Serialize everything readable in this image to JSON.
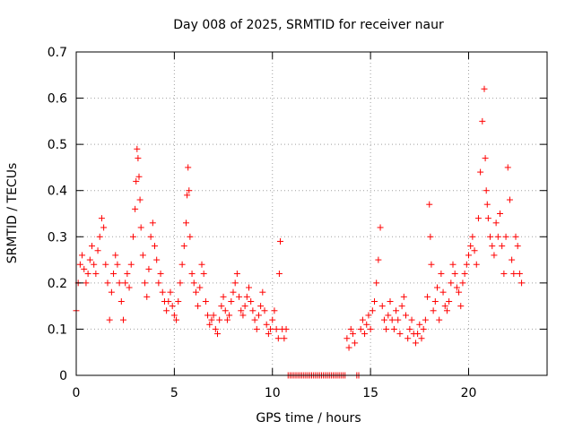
{
  "chart_data": {
    "type": "scatter",
    "title": "Day 008 of 2025, SRMTID for receiver naur",
    "xlabel": "GPS time / hours",
    "ylabel": "SRMTID / TECUs",
    "xlim": [
      0,
      24
    ],
    "ylim": [
      0,
      0.7
    ],
    "xticks": [
      0,
      5,
      10,
      15,
      20
    ],
    "xtick_labels": [
      "0",
      "5",
      "10",
      "15",
      "20"
    ],
    "yticks": [
      0,
      0.1,
      0.2,
      0.3,
      0.4,
      0.5,
      0.6,
      0.7
    ],
    "ytick_labels": [
      "0",
      "0.1",
      "0.2",
      "0.3",
      "0.4",
      "0.5",
      "0.6",
      "0.7"
    ],
    "grid": true,
    "marker": "+",
    "color": "#ff0000",
    "series": [
      {
        "name": "SRMTID",
        "x": [
          0.0,
          0.1,
          0.2,
          0.3,
          0.4,
          0.5,
          0.6,
          0.7,
          0.8,
          0.9,
          1.0,
          1.1,
          1.2,
          1.3,
          1.4,
          1.5,
          1.6,
          1.7,
          1.8,
          1.9,
          2.0,
          2.1,
          2.2,
          2.3,
          2.4,
          2.5,
          2.6,
          2.7,
          2.8,
          2.9,
          3.0,
          3.05,
          3.1,
          3.15,
          3.2,
          3.25,
          3.3,
          3.4,
          3.5,
          3.6,
          3.7,
          3.8,
          3.9,
          4.0,
          4.1,
          4.2,
          4.3,
          4.4,
          4.5,
          4.6,
          4.7,
          4.8,
          4.9,
          5.0,
          5.1,
          5.2,
          5.3,
          5.4,
          5.5,
          5.6,
          5.65,
          5.7,
          5.75,
          5.8,
          5.9,
          6.0,
          6.1,
          6.2,
          6.3,
          6.4,
          6.5,
          6.6,
          6.7,
          6.8,
          6.9,
          7.0,
          7.1,
          7.2,
          7.3,
          7.4,
          7.5,
          7.6,
          7.7,
          7.8,
          7.9,
          8.0,
          8.1,
          8.2,
          8.3,
          8.4,
          8.5,
          8.6,
          8.7,
          8.8,
          8.9,
          9.0,
          9.1,
          9.2,
          9.3,
          9.4,
          9.5,
          9.6,
          9.7,
          9.8,
          9.9,
          10.0,
          10.1,
          10.2,
          10.3,
          10.35,
          10.4,
          10.5,
          10.6,
          10.7,
          10.8,
          10.9,
          11.0,
          11.1,
          11.2,
          11.3,
          11.4,
          11.5,
          11.6,
          11.7,
          11.8,
          11.9,
          12.0,
          12.1,
          12.2,
          12.3,
          12.4,
          12.5,
          12.6,
          12.7,
          12.8,
          12.9,
          13.0,
          13.1,
          13.2,
          13.3,
          13.4,
          13.5,
          13.6,
          13.7,
          13.8,
          13.9,
          14.0,
          14.1,
          14.2,
          14.3,
          14.4,
          14.5,
          14.6,
          14.7,
          14.8,
          14.9,
          15.0,
          15.1,
          15.2,
          15.3,
          15.4,
          15.5,
          15.6,
          15.7,
          15.8,
          15.9,
          16.0,
          16.1,
          16.2,
          16.3,
          16.4,
          16.5,
          16.6,
          16.7,
          16.8,
          16.9,
          17.0,
          17.1,
          17.2,
          17.3,
          17.4,
          17.5,
          17.6,
          17.7,
          17.8,
          17.9,
          18.0,
          18.05,
          18.1,
          18.2,
          18.3,
          18.4,
          18.5,
          18.6,
          18.7,
          18.8,
          18.9,
          19.0,
          19.1,
          19.2,
          19.3,
          19.4,
          19.5,
          19.6,
          19.7,
          19.8,
          19.9,
          20.0,
          20.1,
          20.2,
          20.3,
          20.4,
          20.5,
          20.6,
          20.7,
          20.8,
          20.85,
          20.9,
          20.95,
          21.0,
          21.1,
          21.2,
          21.3,
          21.4,
          21.5,
          21.6,
          21.7,
          21.8,
          21.9,
          22.0,
          22.1,
          22.2,
          22.3,
          22.4,
          22.5,
          22.6,
          22.7
        ],
        "y": [
          0.14,
          0.2,
          0.24,
          0.26,
          0.23,
          0.2,
          0.22,
          0.25,
          0.28,
          0.24,
          0.22,
          0.27,
          0.3,
          0.34,
          0.32,
          0.24,
          0.2,
          0.12,
          0.18,
          0.22,
          0.26,
          0.24,
          0.2,
          0.16,
          0.12,
          0.2,
          0.22,
          0.19,
          0.24,
          0.3,
          0.36,
          0.42,
          0.49,
          0.47,
          0.43,
          0.38,
          0.32,
          0.26,
          0.2,
          0.17,
          0.23,
          0.3,
          0.33,
          0.28,
          0.25,
          0.2,
          0.22,
          0.18,
          0.16,
          0.14,
          0.16,
          0.18,
          0.15,
          0.13,
          0.12,
          0.16,
          0.2,
          0.24,
          0.28,
          0.33,
          0.39,
          0.45,
          0.4,
          0.3,
          0.22,
          0.2,
          0.18,
          0.15,
          0.19,
          0.24,
          0.22,
          0.16,
          0.13,
          0.11,
          0.12,
          0.13,
          0.1,
          0.09,
          0.12,
          0.15,
          0.17,
          0.14,
          0.12,
          0.13,
          0.16,
          0.18,
          0.2,
          0.22,
          0.17,
          0.14,
          0.13,
          0.15,
          0.17,
          0.19,
          0.16,
          0.14,
          0.12,
          0.1,
          0.13,
          0.15,
          0.18,
          0.14,
          0.11,
          0.09,
          0.1,
          0.12,
          0.14,
          0.1,
          0.08,
          0.22,
          0.29,
          0.1,
          0.08,
          0.1,
          0.0,
          0.0,
          0.0,
          0.0,
          0.0,
          0.0,
          0.0,
          0.0,
          0.0,
          0.0,
          0.0,
          0.0,
          0.0,
          0.0,
          0.0,
          0.0,
          0.0,
          0.0,
          0.0,
          0.0,
          0.0,
          0.0,
          0.0,
          0.0,
          0.0,
          0.0,
          0.0,
          0.0,
          0.0,
          0.0,
          0.08,
          0.06,
          0.1,
          0.09,
          0.07,
          0.0,
          0.0,
          0.1,
          0.12,
          0.09,
          0.11,
          0.13,
          0.1,
          0.14,
          0.16,
          0.2,
          0.25,
          0.32,
          0.15,
          0.12,
          0.1,
          0.13,
          0.16,
          0.12,
          0.1,
          0.14,
          0.12,
          0.09,
          0.15,
          0.17,
          0.13,
          0.08,
          0.1,
          0.12,
          0.09,
          0.07,
          0.09,
          0.11,
          0.08,
          0.1,
          0.12,
          0.17,
          0.37,
          0.3,
          0.24,
          0.14,
          0.16,
          0.19,
          0.12,
          0.22,
          0.18,
          0.15,
          0.14,
          0.16,
          0.2,
          0.24,
          0.22,
          0.19,
          0.18,
          0.15,
          0.2,
          0.22,
          0.24,
          0.26,
          0.28,
          0.3,
          0.27,
          0.24,
          0.34,
          0.44,
          0.55,
          0.62,
          0.47,
          0.4,
          0.37,
          0.34,
          0.3,
          0.28,
          0.26,
          0.33,
          0.3,
          0.35,
          0.28,
          0.22,
          0.3,
          0.45,
          0.38,
          0.25,
          0.22,
          0.3,
          0.28,
          0.22,
          0.2
        ]
      }
    ]
  }
}
